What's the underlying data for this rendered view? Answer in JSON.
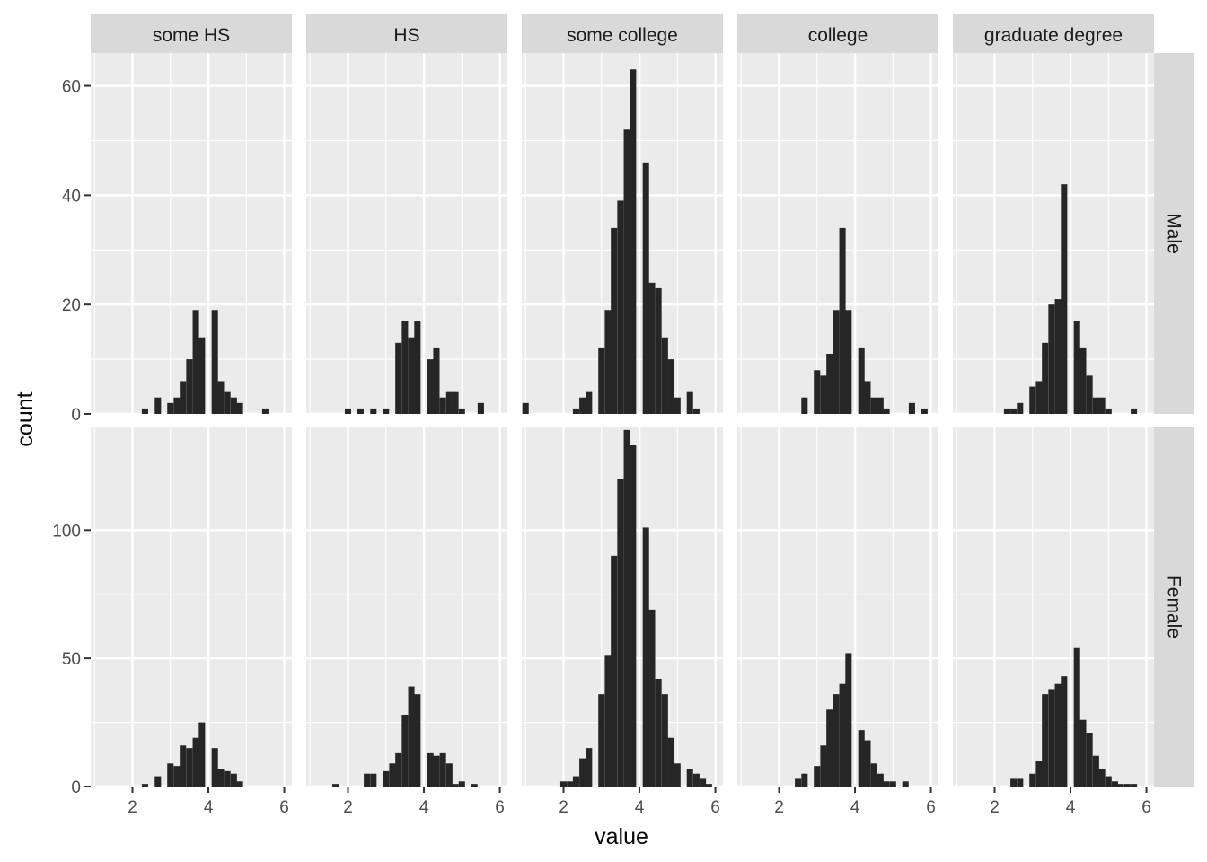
{
  "chart_data": {
    "type": "bar",
    "subtype": "faceted-histogram",
    "xlabel": "value",
    "ylabel": "count",
    "facet_columns": [
      "some HS",
      "HS",
      "some college",
      "college",
      "graduate degree"
    ],
    "facet_rows": [
      "Male",
      "Female"
    ],
    "x_range": [
      0.9,
      6.2
    ],
    "x_ticks": [
      2,
      4,
      6
    ],
    "bin_width": 0.167,
    "rows": [
      {
        "name": "Male",
        "ylim": [
          0,
          66
        ],
        "y_ticks": [
          0,
          20,
          40,
          60
        ],
        "panels": [
          {
            "name": "some HS",
            "x": [
              2.33,
              2.67,
              3.0,
              3.17,
              3.33,
              3.5,
              3.67,
              3.83,
              4.17,
              4.33,
              4.5,
              4.67,
              4.83,
              5.5
            ],
            "values": [
              1,
              3,
              2,
              3,
              6,
              10,
              19,
              14,
              19,
              6,
              4,
              3,
              2,
              1
            ]
          },
          {
            "name": "HS",
            "x": [
              2.0,
              2.33,
              2.67,
              3.0,
              3.33,
              3.5,
              3.67,
              3.83,
              4.17,
              4.33,
              4.5,
              4.67,
              4.83,
              5.0,
              5.5
            ],
            "values": [
              1,
              1,
              1,
              1,
              13,
              17,
              14,
              17,
              10,
              12,
              3,
              4,
              4,
              1,
              2
            ]
          },
          {
            "name": "some college",
            "x": [
              1.0,
              2.33,
              2.5,
              2.67,
              3.0,
              3.17,
              3.33,
              3.5,
              3.67,
              3.83,
              4.17,
              4.33,
              4.5,
              4.67,
              4.83,
              5.0,
              5.33,
              5.5
            ],
            "values": [
              2,
              1,
              3,
              4,
              12,
              19,
              34,
              39,
              52,
              63,
              46,
              24,
              23,
              14,
              10,
              3,
              4,
              1
            ]
          },
          {
            "name": "college",
            "x": [
              2.67,
              3.0,
              3.17,
              3.33,
              3.5,
              3.67,
              3.83,
              4.17,
              4.33,
              4.5,
              4.67,
              4.83,
              5.5,
              5.83
            ],
            "values": [
              3,
              8,
              7,
              11,
              19,
              34,
              19,
              12,
              6,
              3,
              3,
              1,
              2,
              1
            ]
          },
          {
            "name": "graduate degree",
            "x": [
              2.33,
              2.5,
              2.67,
              3.0,
              3.17,
              3.33,
              3.5,
              3.67,
              3.83,
              4.17,
              4.33,
              4.5,
              4.67,
              4.83,
              5.0,
              5.67
            ],
            "values": [
              1,
              1,
              2,
              5,
              6,
              13,
              20,
              21,
              42,
              17,
              12,
              7,
              3,
              3,
              1,
              1
            ]
          }
        ]
      },
      {
        "name": "Female",
        "ylim": [
          0,
          140
        ],
        "y_ticks": [
          0,
          50,
          100
        ],
        "panels": [
          {
            "name": "some HS",
            "x": [
              2.33,
              2.67,
              3.0,
              3.17,
              3.33,
              3.5,
              3.67,
              3.83,
              4.17,
              4.33,
              4.5,
              4.67,
              4.83
            ],
            "values": [
              1,
              4,
              9,
              8,
              16,
              15,
              19,
              25,
              15,
              7,
              6,
              5,
              2
            ]
          },
          {
            "name": "HS",
            "x": [
              1.67,
              2.5,
              2.67,
              3.0,
              3.17,
              3.33,
              3.5,
              3.67,
              3.83,
              4.17,
              4.33,
              4.5,
              4.67,
              4.83,
              5.0,
              5.33
            ],
            "values": [
              1,
              5,
              5,
              6,
              9,
              13,
              28,
              39,
              36,
              13,
              12,
              13,
              9,
              1,
              2,
              1
            ]
          },
          {
            "name": "some college",
            "x": [
              2.0,
              2.17,
              2.33,
              2.5,
              2.67,
              3.0,
              3.17,
              3.33,
              3.5,
              3.67,
              3.83,
              4.17,
              4.33,
              4.5,
              4.67,
              4.83,
              5.0,
              5.33,
              5.5,
              5.67,
              5.83
            ],
            "values": [
              2,
              2,
              4,
              11,
              15,
              36,
              51,
              90,
              120,
              139,
              133,
              101,
              69,
              42,
              36,
              19,
              9,
              7,
              5,
              3,
              1
            ]
          },
          {
            "name": "college",
            "x": [
              2.5,
              2.67,
              3.0,
              3.17,
              3.33,
              3.5,
              3.67,
              3.83,
              4.17,
              4.33,
              4.5,
              4.67,
              4.83,
              5.0,
              5.33
            ],
            "values": [
              3,
              5,
              8,
              16,
              30,
              36,
              40,
              52,
              22,
              18,
              9,
              5,
              2,
              2,
              2
            ]
          },
          {
            "name": "graduate degree",
            "x": [
              2.5,
              2.67,
              3.0,
              3.17,
              3.33,
              3.5,
              3.67,
              3.83,
              4.17,
              4.33,
              4.5,
              4.67,
              4.83,
              5.0,
              5.17,
              5.33,
              5.5,
              5.67
            ],
            "values": [
              3,
              3,
              5,
              10,
              36,
              38,
              40,
              43,
              54,
              26,
              21,
              12,
              7,
              4,
              2,
              1,
              1,
              1
            ]
          }
        ]
      }
    ]
  }
}
